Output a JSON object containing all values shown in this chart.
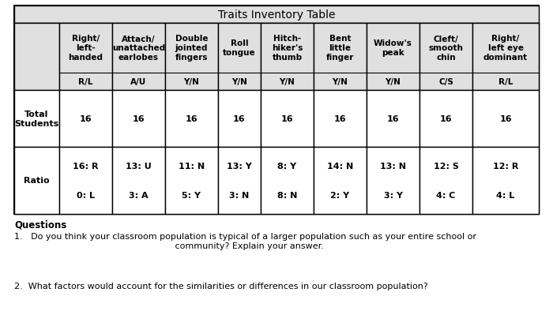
{
  "title": "Traits Inventory Table",
  "col_headers_top": [
    "Right/\nleft-\nhanded",
    "Attach/\nunattached\nearlobes",
    "Double\njointed\nfingers",
    "Roll\ntongue",
    "Hitch-\nhiker's\nthumb",
    "Bent\nlittle\nfinger",
    "Widow's\npeak",
    "Cleft/\nsmooth\nchin",
    "Right/\nleft eye\ndominant"
  ],
  "col_headers_bot": [
    "R/L",
    "A/U",
    "Y/N",
    "Y/N",
    "Y/N",
    "Y/N",
    "Y/N",
    "C/S",
    "R/L"
  ],
  "row1_label": "Total\nStudents",
  "row1_values": [
    "16",
    "16",
    "16",
    "16",
    "16",
    "16",
    "16",
    "16",
    "16"
  ],
  "row2_label": "Ratio",
  "row2_line1": [
    "16: R",
    "13: U",
    "11: N",
    "13: Y",
    "8: Y",
    "14: N",
    "13: N",
    "12: S",
    "12: R"
  ],
  "row2_line2": [
    "0: L",
    "3: A",
    "5: Y",
    "3: N",
    "8: N",
    "2: Y",
    "3: Y",
    "4: C",
    "4: L"
  ],
  "questions_label": "Questions",
  "q1_num": "1.",
  "q1_text": "Do you think your classroom population is typical of a larger population such as your entire school or\n   community? Explain your answer.",
  "q2_num": "2.",
  "q2_text": "What factors would account for the similarities or differences in our classroom population?",
  "bg_color": "#ffffff",
  "table_bg": "#ffffff",
  "header_bg": "#e0e0e0",
  "border_color": "#000000",
  "text_color": "#000000",
  "title_fontsize": 10,
  "header_fontsize": 7.5,
  "body_fontsize": 8,
  "label_fontsize": 8,
  "questions_fontsize": 8.5
}
